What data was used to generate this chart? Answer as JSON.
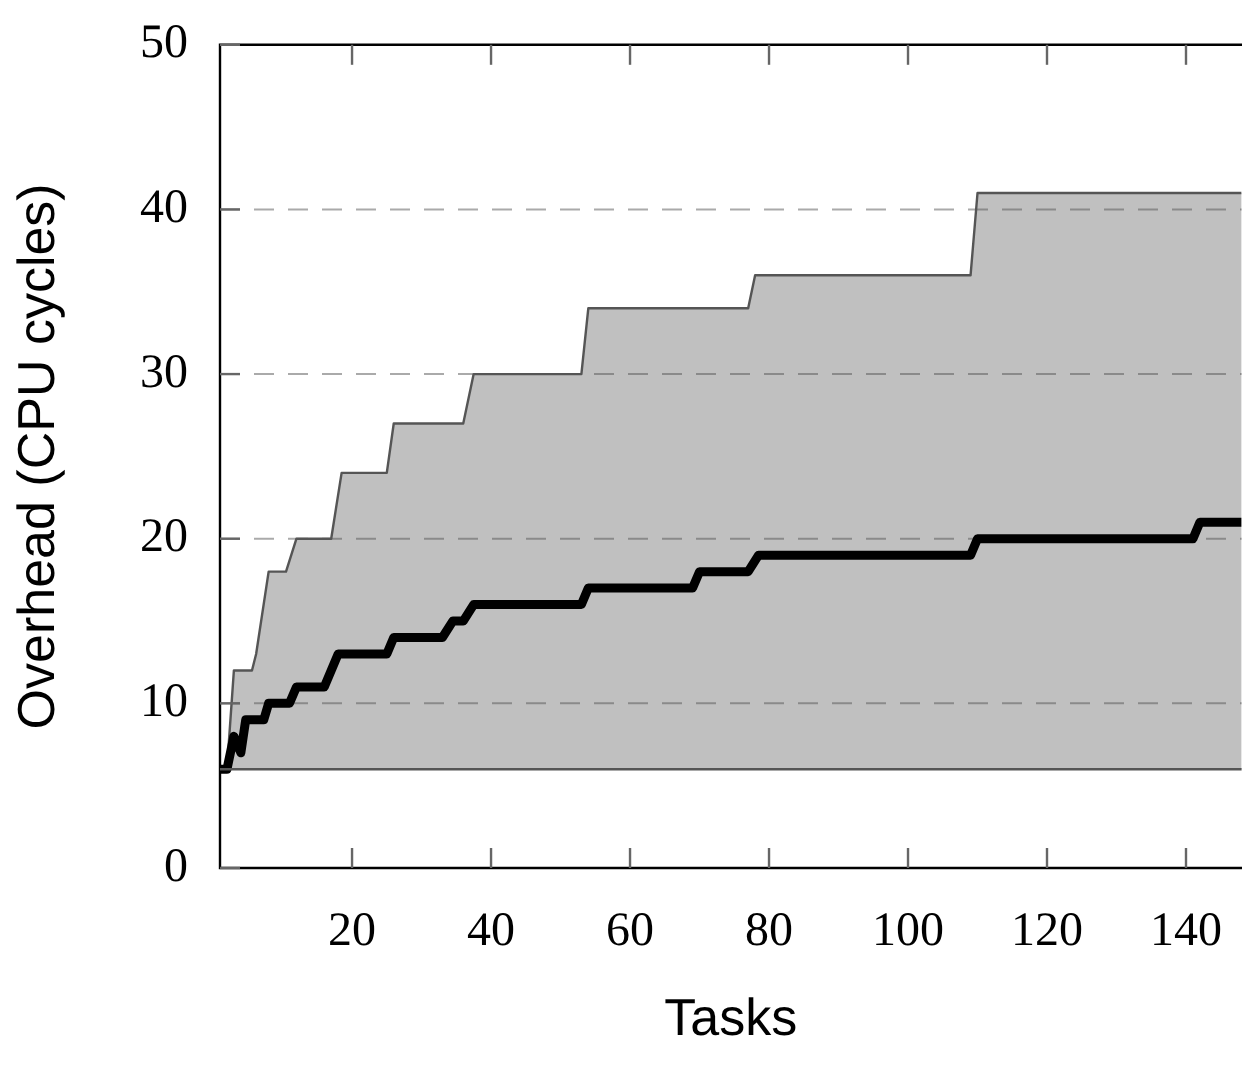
{
  "chart_data": {
    "type": "line",
    "xlabel": "Tasks",
    "ylabel": "Overhead (CPU cycles)",
    "xlim": [
      1,
      148
    ],
    "xticks": [
      20,
      40,
      60,
      80,
      100,
      120,
      140
    ],
    "ylim": [
      0,
      50
    ],
    "yticks": [
      0,
      10,
      20,
      30,
      40,
      50
    ],
    "grid": "y",
    "legend": false,
    "marker": "none",
    "line_style": "solid",
    "ref_lines": [
      {
        "axis": "y",
        "value": 6,
        "color": "#555555"
      }
    ],
    "series": [
      {
        "type": "area",
        "color": "#555555",
        "x": [
          1,
          2,
          3,
          5.6,
          6.2,
          8,
          10.5,
          12,
          17,
          18.5,
          25,
          26,
          36,
          37.5,
          53,
          54,
          77,
          78,
          109,
          110,
          148
        ],
        "values": [
          6,
          6,
          12,
          12,
          13,
          18,
          18,
          20,
          20,
          24,
          24,
          27,
          27,
          30,
          30,
          34,
          34,
          36,
          36,
          41,
          41
        ]
      },
      {
        "color": "#000000",
        "x": [
          1,
          2,
          3,
          4,
          4.7,
          7.3,
          8,
          11,
          12,
          16,
          18,
          25,
          26,
          33,
          34.5,
          36,
          37.5,
          53,
          54,
          69,
          70,
          77,
          78.5,
          109,
          110,
          141,
          142,
          148
        ],
        "values": [
          6,
          6,
          8,
          7,
          9,
          9,
          10,
          10,
          11,
          11,
          13,
          13,
          14,
          14,
          15,
          15,
          16,
          16,
          17,
          17,
          18,
          18,
          19,
          19,
          20,
          20,
          21,
          21
        ]
      }
    ]
  }
}
